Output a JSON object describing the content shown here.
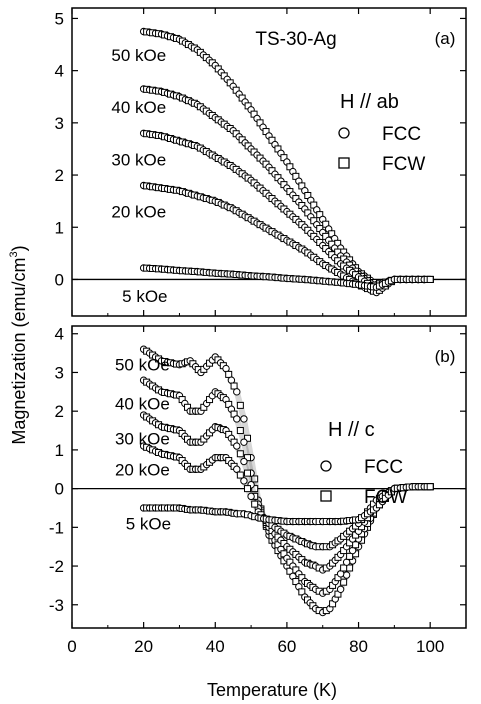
{
  "figure": {
    "xlabel": "Temperature (K)",
    "ylabel": "Magnetization  (emu/cm",
    "ylabel_sup": "3",
    "ylabel_close": ")"
  },
  "chart_data": [
    {
      "type": "scatter",
      "panel_label": "(a)",
      "sample_label": "TS-30-Ag",
      "field_direction": "H // ab",
      "xlim": [
        0,
        110
      ],
      "ylim": [
        -0.7,
        5.2
      ],
      "xticks": [
        0,
        20,
        40,
        60,
        80,
        100
      ],
      "yticks": [
        0,
        1,
        2,
        3,
        4,
        5
      ],
      "zero_line": true,
      "legend": [
        {
          "label": "FCC",
          "marker": "circle"
        },
        {
          "label": "FCW",
          "marker": "square"
        }
      ],
      "curve_labels": [
        {
          "text": "50 kOe",
          "x": 11,
          "y": 4.3
        },
        {
          "text": "40 kOe",
          "x": 11,
          "y": 3.3
        },
        {
          "text": "30 kOe",
          "x": 11,
          "y": 2.3
        },
        {
          "text": "20 kOe",
          "x": 11,
          "y": 1.3
        },
        {
          "text": "5 kOe",
          "x": 14,
          "y": -0.32
        }
      ],
      "series": [
        {
          "field": "50 kOe",
          "x": [
            20,
            25,
            30,
            35,
            40,
            45,
            50,
            55,
            60,
            65,
            70,
            75,
            80,
            85,
            90,
            95,
            100
          ],
          "y": [
            4.75,
            4.7,
            4.6,
            4.4,
            4.1,
            3.7,
            3.25,
            2.75,
            2.25,
            1.7,
            1.15,
            0.6,
            0.15,
            -0.1,
            0.0,
            0.0,
            0.0
          ]
        },
        {
          "field": "40 kOe",
          "x": [
            20,
            25,
            30,
            35,
            40,
            45,
            50,
            55,
            60,
            65,
            70,
            75,
            80,
            85,
            90,
            95,
            100
          ],
          "y": [
            3.65,
            3.6,
            3.5,
            3.35,
            3.1,
            2.85,
            2.5,
            2.15,
            1.75,
            1.35,
            0.9,
            0.45,
            0.1,
            -0.15,
            0.0,
            0.0,
            0.0
          ]
        },
        {
          "field": "30 kOe",
          "x": [
            20,
            25,
            30,
            35,
            40,
            45,
            50,
            55,
            60,
            65,
            70,
            75,
            80,
            85,
            90,
            95,
            100
          ],
          "y": [
            2.8,
            2.75,
            2.65,
            2.55,
            2.35,
            2.15,
            1.9,
            1.6,
            1.3,
            1.0,
            0.65,
            0.3,
            0.05,
            -0.2,
            0.0,
            0.0,
            0.0
          ]
        },
        {
          "field": "20 kOe",
          "x": [
            20,
            25,
            30,
            35,
            40,
            45,
            50,
            55,
            60,
            65,
            70,
            75,
            80,
            85,
            90,
            95,
            100
          ],
          "y": [
            1.8,
            1.75,
            1.7,
            1.6,
            1.5,
            1.35,
            1.15,
            0.95,
            0.75,
            0.55,
            0.3,
            0.1,
            -0.1,
            -0.25,
            0.0,
            0.0,
            0.0
          ]
        },
        {
          "field": "5 kOe",
          "x": [
            20,
            25,
            30,
            35,
            40,
            45,
            50,
            55,
            60,
            65,
            70,
            75,
            80,
            85,
            90,
            95,
            100
          ],
          "y": [
            0.22,
            0.2,
            0.17,
            0.15,
            0.12,
            0.1,
            0.07,
            0.05,
            0.02,
            0.0,
            -0.03,
            -0.06,
            -0.1,
            -0.15,
            0.0,
            0.0,
            0.0
          ]
        }
      ]
    },
    {
      "type": "scatter",
      "panel_label": "(b)",
      "field_direction": "H // c",
      "xlim": [
        0,
        110
      ],
      "ylim": [
        -3.6,
        4.2
      ],
      "xticks": [
        0,
        20,
        40,
        60,
        80,
        100
      ],
      "yticks": [
        -3,
        -2,
        -1,
        0,
        1,
        2,
        3,
        4
      ],
      "zero_line": true,
      "legend": [
        {
          "label": "FCC",
          "marker": "circle"
        },
        {
          "label": "FCW",
          "marker": "square"
        }
      ],
      "curve_labels": [
        {
          "text": "50 kOe",
          "x": 12,
          "y": 3.2
        },
        {
          "text": "40 kOe",
          "x": 12,
          "y": 2.2
        },
        {
          "text": "30 kOe",
          "x": 12,
          "y": 1.3
        },
        {
          "text": "20 kOe",
          "x": 12,
          "y": 0.5
        },
        {
          "text": "5 kOe",
          "x": 15,
          "y": -0.9
        }
      ],
      "series": [
        {
          "field": "50 kOe",
          "x": [
            20,
            25,
            30,
            33,
            36,
            40,
            43,
            46,
            48,
            50,
            52,
            55,
            60,
            65,
            68,
            70,
            72,
            75,
            80,
            85,
            90,
            95,
            100
          ],
          "y": [
            3.6,
            3.3,
            3.2,
            3.3,
            3.0,
            3.4,
            3.1,
            2.5,
            1.8,
            0.8,
            -0.3,
            -1.2,
            -2.0,
            -2.8,
            -3.1,
            -3.2,
            -3.1,
            -2.6,
            -1.5,
            -0.5,
            0.0,
            0.05,
            0.05
          ]
        },
        {
          "field": "40 kOe",
          "x": [
            20,
            25,
            30,
            33,
            36,
            40,
            43,
            46,
            48,
            50,
            52,
            55,
            60,
            65,
            68,
            70,
            72,
            75,
            80,
            85,
            90,
            95,
            100
          ],
          "y": [
            2.8,
            2.5,
            2.4,
            2.0,
            2.0,
            2.5,
            2.3,
            1.8,
            1.2,
            0.4,
            -0.4,
            -1.1,
            -1.8,
            -2.4,
            -2.6,
            -2.7,
            -2.6,
            -2.2,
            -1.3,
            -0.5,
            0.0,
            0.05,
            0.05
          ]
        },
        {
          "field": "30 kOe",
          "x": [
            20,
            25,
            30,
            33,
            36,
            40,
            43,
            46,
            48,
            50,
            52,
            55,
            60,
            65,
            68,
            70,
            72,
            75,
            80,
            85,
            90,
            95,
            100
          ],
          "y": [
            1.9,
            1.6,
            1.5,
            1.2,
            1.2,
            1.6,
            1.5,
            1.1,
            0.7,
            0.1,
            -0.5,
            -1.0,
            -1.5,
            -1.9,
            -2.0,
            -2.1,
            -2.0,
            -1.7,
            -1.1,
            -0.4,
            0.0,
            0.05,
            0.05
          ]
        },
        {
          "field": "20 kOe",
          "x": [
            20,
            25,
            30,
            33,
            36,
            40,
            43,
            46,
            48,
            50,
            52,
            55,
            60,
            65,
            68,
            70,
            72,
            75,
            80,
            85,
            90,
            95,
            100
          ],
          "y": [
            1.1,
            0.9,
            0.8,
            0.5,
            0.5,
            0.8,
            0.8,
            0.5,
            0.2,
            -0.2,
            -0.6,
            -0.9,
            -1.2,
            -1.4,
            -1.5,
            -1.5,
            -1.5,
            -1.3,
            -0.9,
            -0.3,
            0.0,
            0.05,
            0.05
          ]
        },
        {
          "field": "5 kOe",
          "x": [
            20,
            25,
            30,
            33,
            36,
            40,
            43,
            46,
            48,
            50,
            52,
            55,
            60,
            65,
            68,
            70,
            72,
            75,
            80,
            85,
            90,
            95,
            100
          ],
          "y": [
            -0.5,
            -0.5,
            -0.5,
            -0.55,
            -0.55,
            -0.6,
            -0.6,
            -0.65,
            -0.65,
            -0.7,
            -0.75,
            -0.8,
            -0.85,
            -0.85,
            -0.85,
            -0.85,
            -0.85,
            -0.85,
            -0.8,
            -0.5,
            0.0,
            0.05,
            0.05
          ]
        }
      ]
    }
  ]
}
